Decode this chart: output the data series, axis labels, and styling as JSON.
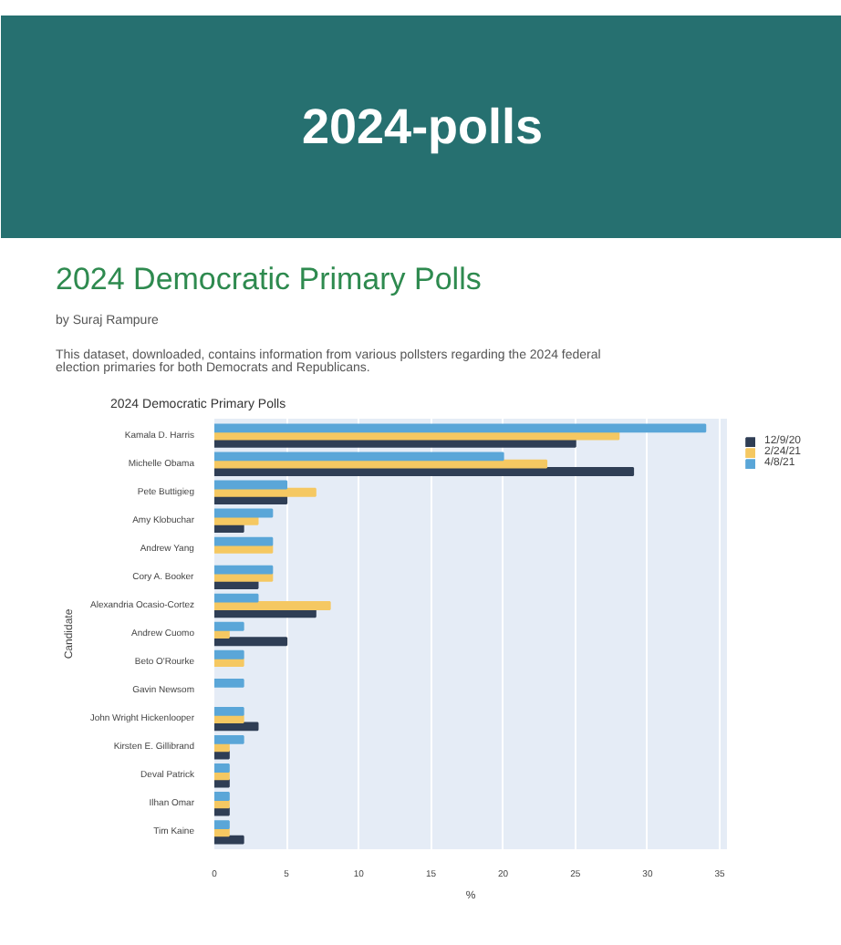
{
  "chart_data": {
    "type": "bar",
    "orientation": "horizontal",
    "title": "2024-polls",
    "subtitle": "2024 Democratic Primary Polls",
    "annotations": [
      "by Suraj Rampure",
      "This dataset, downloaded, contains information from various pollsters regarding the 2024 federal election primaries for both Democrats and Republicans.",
      "2024 Democratic Primary Polls"
    ],
    "xlabel": "%",
    "ylabel": "Candidate",
    "categories": [
      "Kamala D. Harris",
      "Michelle Obama",
      "Pete Buttigieg",
      "Amy Klobuchar",
      "Andrew Yang",
      "Cory A. Booker",
      "Alexandria Ocasio-Cortez",
      "Andrew Cuomo",
      "Beto O'Rourke",
      "Gavin Newsom",
      "John Wright Hickenlooper",
      "Kirsten E. Gillibrand",
      "Deval Patrick",
      "Ilhan Omar",
      "Tim Kaine"
    ],
    "series": [
      {
        "name": "12/9/20",
        "color": "#2f3e55",
        "values": [
          25,
          29,
          5,
          2,
          null,
          3,
          7,
          5,
          null,
          null,
          3,
          1,
          1,
          1,
          2
        ]
      },
      {
        "name": "2/24/21",
        "color": "#f5c862",
        "values": [
          28,
          23,
          7,
          3,
          4,
          4,
          8,
          1,
          2,
          null,
          2,
          1,
          1,
          1,
          1
        ]
      },
      {
        "name": "4/8/21",
        "color": "#5aa6d8",
        "values": [
          34,
          20,
          5,
          4,
          4,
          4,
          3,
          2,
          2,
          2,
          2,
          2,
          1,
          1,
          1
        ]
      }
    ],
    "xlim": [
      0,
      35.5
    ],
    "xticks": [
      0,
      5,
      10,
      15,
      20,
      25,
      30,
      35
    ],
    "grid": "x",
    "legend": "top right"
  }
}
